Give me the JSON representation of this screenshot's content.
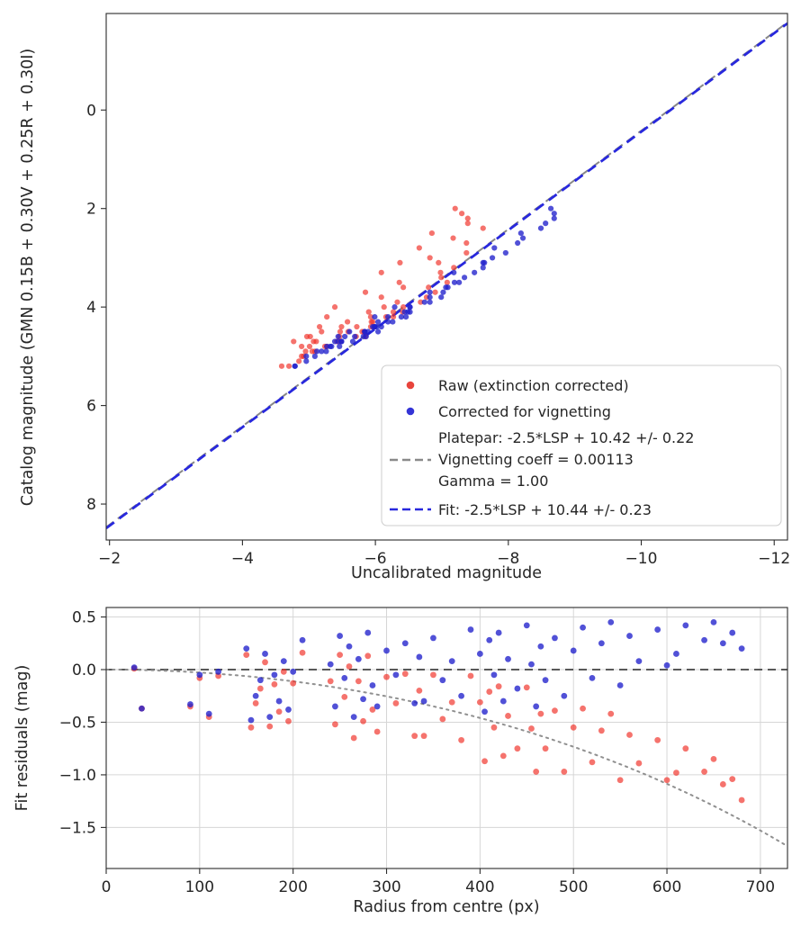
{
  "series_meta": {
    "raw": {
      "label": "Raw (extinction corrected)",
      "color": "#f03028",
      "opacity": 0.68,
      "marker_radius": 3.1
    },
    "corr": {
      "label": "Corrected for vignetting",
      "color": "#2020cc",
      "opacity": 0.78,
      "marker_radius": 3.1
    }
  },
  "legend": {
    "entries": [
      {
        "marker": "dot",
        "color": "#e8443c",
        "label": "Raw (extinction corrected)"
      },
      {
        "marker": "dot",
        "color": "#3434d6",
        "label": "Corrected for vignetting"
      },
      {
        "marker": "dash",
        "color": "#8a8a8a",
        "label_lines": [
          "Platepar: -2.5*LSP + 10.42 +/- 0.22",
          "Vignetting coeff = 0.00113",
          "Gamma = 1.00"
        ]
      },
      {
        "marker": "dash",
        "color": "#2828dd",
        "label": "Fit: -2.5*LSP + 10.44 +/- 0.23"
      }
    ]
  },
  "chart_data": [
    {
      "type": "scatter",
      "title": "",
      "xlabel": "Uncalibrated magnitude",
      "ylabel": "Catalog magnitude (GMN 0.15B + 0.30V + 0.25R + 0.30I)",
      "xlim": [
        -1.95,
        -12.2
      ],
      "ylim": [
        -1.96,
        8.73
      ],
      "x_inverted": true,
      "y_inverted": true,
      "grid": false,
      "legend_position": "lower right",
      "x_ticks": [
        {
          "v": -2,
          "t": "−2"
        },
        {
          "v": -4,
          "t": "−4"
        },
        {
          "v": -6,
          "t": "−6"
        },
        {
          "v": -8,
          "t": "−8"
        },
        {
          "v": -10,
          "t": "−10"
        },
        {
          "v": -12,
          "t": "−12"
        }
      ],
      "y_ticks": [
        {
          "v": 0,
          "t": "0"
        },
        {
          "v": 2,
          "t": "2"
        },
        {
          "v": 4,
          "t": "4"
        },
        {
          "v": 6,
          "t": "6"
        },
        {
          "v": 8,
          "t": "8"
        }
      ],
      "fit_line": {
        "slope": 1,
        "intercept": 10.44,
        "uncertainty": 0.23,
        "color": "#2828dd",
        "style": "dashed"
      },
      "platepar_line": {
        "slope": 1,
        "intercept": 10.42,
        "uncertainty": 0.22,
        "color": "#888888",
        "style": "dashed"
      }
    },
    {
      "type": "scatter",
      "title": "",
      "xlabel": "Radius from centre (px)",
      "ylabel": "Fit residuals (mag)",
      "xlim": [
        0,
        729
      ],
      "ylim": [
        0.59,
        -1.89
      ],
      "grid": true,
      "x_ticks": [
        {
          "v": 0,
          "t": "0"
        },
        {
          "v": 100,
          "t": "100"
        },
        {
          "v": 200,
          "t": "200"
        },
        {
          "v": 300,
          "t": "300"
        },
        {
          "v": 400,
          "t": "400"
        },
        {
          "v": 500,
          "t": "500"
        },
        {
          "v": 600,
          "t": "600"
        },
        {
          "v": 700,
          "t": "700"
        }
      ],
      "y_ticks": [
        {
          "v": 0.5,
          "t": "0.5"
        },
        {
          "v": 0.0,
          "t": "0.0"
        },
        {
          "v": -0.5,
          "t": "−0.5"
        },
        {
          "v": -1.0,
          "t": "−1.0"
        },
        {
          "v": -1.5,
          "t": "−1.5"
        }
      ],
      "zero_line": {
        "y": 0,
        "color": "#595959",
        "style": "dashed"
      },
      "vignetting_curve": {
        "coeff": 0.00113,
        "gamma": 1.0,
        "color": "#909090",
        "style": "dotted"
      }
    }
  ],
  "stars_columns": [
    "radius_px",
    "catalog_mag",
    "residual_raw",
    "residual_corrected"
  ],
  "stars": [
    [
      30,
      4.6,
      0.01,
      0.02
    ],
    [
      38,
      4.8,
      -0.37,
      -0.37
    ],
    [
      90,
      4.5,
      -0.35,
      -0.33
    ],
    [
      100,
      4.2,
      -0.08,
      -0.05
    ],
    [
      110,
      4.9,
      -0.45,
      -0.42
    ],
    [
      120,
      4.4,
      -0.06,
      -0.02
    ],
    [
      150,
      3.9,
      0.14,
      0.2
    ],
    [
      155,
      5.0,
      -0.55,
      -0.48
    ],
    [
      160,
      4.7,
      -0.32,
      -0.25
    ],
    [
      165,
      4.3,
      -0.18,
      -0.1
    ],
    [
      170,
      4.1,
      0.07,
      0.15
    ],
    [
      175,
      5.2,
      -0.54,
      -0.45
    ],
    [
      180,
      4.5,
      -0.14,
      -0.05
    ],
    [
      185,
      4.8,
      -0.4,
      -0.3
    ],
    [
      190,
      4.0,
      -0.02,
      0.08
    ],
    [
      195,
      5.1,
      -0.49,
      -0.38
    ],
    [
      200,
      4.6,
      -0.13,
      -0.02
    ],
    [
      210,
      3.7,
      0.16,
      0.28
    ],
    [
      240,
      4.4,
      -0.11,
      0.05
    ],
    [
      245,
      5.0,
      -0.52,
      -0.35
    ],
    [
      250,
      3.5,
      0.14,
      0.32
    ],
    [
      255,
      4.7,
      -0.26,
      -0.08
    ],
    [
      260,
      4.2,
      0.03,
      0.22
    ],
    [
      265,
      5.2,
      -0.65,
      -0.45
    ],
    [
      270,
      4.5,
      -0.11,
      0.1
    ],
    [
      275,
      4.9,
      -0.49,
      -0.28
    ],
    [
      280,
      3.8,
      0.13,
      0.35
    ],
    [
      285,
      4.6,
      -0.38,
      -0.15
    ],
    [
      290,
      4.9,
      -0.59,
      -0.35
    ],
    [
      300,
      4.1,
      -0.07,
      0.18
    ],
    [
      310,
      4.4,
      -0.32,
      -0.05
    ],
    [
      320,
      3.6,
      -0.04,
      0.25
    ],
    [
      330,
      4.8,
      -0.63,
      -0.32
    ],
    [
      335,
      4.3,
      -0.2,
      0.12
    ],
    [
      340,
      4.7,
      -0.63,
      -0.3
    ],
    [
      350,
      3.4,
      -0.05,
      0.3
    ],
    [
      360,
      4.5,
      -0.47,
      -0.1
    ],
    [
      370,
      4.0,
      -0.31,
      0.08
    ],
    [
      380,
      4.7,
      -0.67,
      -0.25
    ],
    [
      390,
      3.2,
      -0.06,
      0.38
    ],
    [
      400,
      4.2,
      -0.31,
      0.15
    ],
    [
      405,
      4.6,
      -0.87,
      -0.4
    ],
    [
      410,
      3.9,
      -0.21,
      0.28
    ],
    [
      415,
      4.4,
      -0.55,
      -0.05
    ],
    [
      420,
      3.3,
      -0.16,
      0.35
    ],
    [
      425,
      4.6,
      -0.82,
      -0.3
    ],
    [
      430,
      4.1,
      -0.44,
      0.1
    ],
    [
      440,
      4.8,
      -0.75,
      -0.18
    ],
    [
      450,
      2.9,
      -0.17,
      0.42
    ],
    [
      455,
      4.3,
      -0.56,
      0.05
    ],
    [
      460,
      4.7,
      -0.97,
      -0.35
    ],
    [
      465,
      3.6,
      -0.42,
      0.22
    ],
    [
      470,
      4.5,
      -0.75,
      -0.1
    ],
    [
      480,
      3.1,
      -0.39,
      0.3
    ],
    [
      490,
      4.2,
      -0.97,
      -0.25
    ],
    [
      500,
      3.8,
      -0.55,
      0.18
    ],
    [
      510,
      2.7,
      -0.37,
      0.4
    ],
    [
      520,
      4.4,
      -0.88,
      -0.08
    ],
    [
      530,
      3.5,
      -0.58,
      0.25
    ],
    [
      540,
      2.4,
      -0.42,
      0.45
    ],
    [
      550,
      4.0,
      -1.05,
      -0.15
    ],
    [
      560,
      3.0,
      -0.62,
      0.32
    ],
    [
      570,
      3.7,
      -0.89,
      0.08
    ],
    [
      590,
      2.6,
      -0.67,
      0.38
    ],
    [
      600,
      3.3,
      -1.05,
      0.04
    ],
    [
      610,
      2.8,
      -0.98,
      0.15
    ],
    [
      620,
      2.3,
      -0.75,
      0.42
    ],
    [
      640,
      3.1,
      -0.97,
      0.28
    ],
    [
      650,
      2.2,
      -0.85,
      0.45
    ],
    [
      660,
      2.5,
      -1.09,
      0.25
    ],
    [
      670,
      2.1,
      -1.04,
      0.35
    ],
    [
      680,
      2.0,
      -1.24,
      0.2
    ]
  ]
}
